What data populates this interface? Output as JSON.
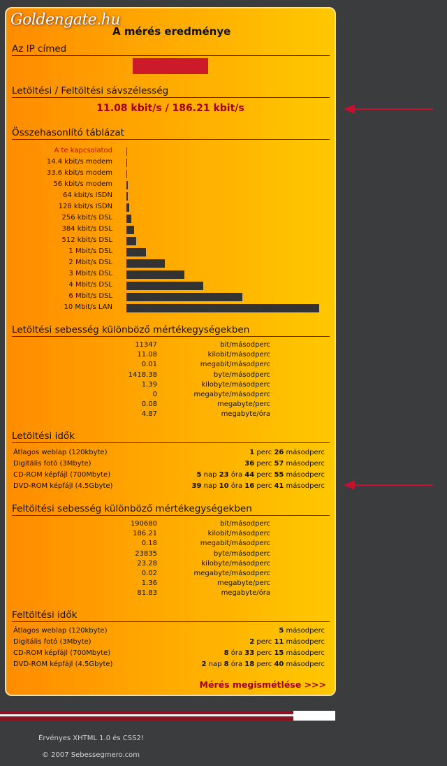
{
  "header": {
    "logo_text": "Goldengate.hu",
    "title": "A mérés eredménye"
  },
  "ip_section": {
    "heading": "Az IP címed"
  },
  "bandwidth": {
    "heading": "Letöltési / Feltöltési sávszélesség",
    "value": "11.08 kbit/s / 186.21 kbit/s"
  },
  "comparison": {
    "heading": "Összehasonlító táblázat",
    "rows": [
      {
        "label": "A te kapcsolatod",
        "value": 0.01108
      },
      {
        "label": "14.4 kbit/s modem",
        "value": 0.0144
      },
      {
        "label": "33.6 kbit/s modem",
        "value": 0.0336
      },
      {
        "label": "56 kbit/s modem",
        "value": 0.056
      },
      {
        "label": "64 kbit/s ISDN",
        "value": 0.064
      },
      {
        "label": "128 kbit/s ISDN",
        "value": 0.128
      },
      {
        "label": "256 kbit/s DSL",
        "value": 0.256
      },
      {
        "label": "384 kbit/s DSL",
        "value": 0.384
      },
      {
        "label": "512 kbit/s DSL",
        "value": 0.512
      },
      {
        "label": "1 Mbit/s DSL",
        "value": 1
      },
      {
        "label": "2 Mbit/s DSL",
        "value": 2
      },
      {
        "label": "3 Mbit/s DSL",
        "value": 3
      },
      {
        "label": "4 Mbit/s DSL",
        "value": 4
      },
      {
        "label": "6 Mbit/s DSL",
        "value": 6
      },
      {
        "label": "10 Mbit/s LAN",
        "value": 10
      }
    ],
    "max": 10,
    "highlight_color": "#c2001a",
    "bar_color": "#333333"
  },
  "download_units": {
    "heading": "Letöltési sebesség különböző mértékegységekben",
    "rows": [
      {
        "value": "11347",
        "unit": "bit/másodperc"
      },
      {
        "value": "11.08",
        "unit": "kilobit/másodperc"
      },
      {
        "value": "0.01",
        "unit": "megabit/másodperc"
      },
      {
        "value": "1418.38",
        "unit": "byte/másodperc"
      },
      {
        "value": "1.39",
        "unit": "kilobyte/másodperc"
      },
      {
        "value": "0",
        "unit": "megabyte/másodperc"
      },
      {
        "value": "0.08",
        "unit": "megabyte/perc"
      },
      {
        "value": "4.87",
        "unit": "megabyte/óra"
      }
    ]
  },
  "download_times": {
    "heading": "Letöltési idők",
    "rows": [
      {
        "label": "Átlagos weblap (120kbyte)",
        "parts": [
          [
            "1",
            " perc "
          ],
          [
            "26",
            " másodperc"
          ]
        ]
      },
      {
        "label": "Digitális fotó (3Mbyte)",
        "parts": [
          [
            "36",
            " perc "
          ],
          [
            "57",
            " másodperc"
          ]
        ]
      },
      {
        "label": "CD-ROM képfájl (700Mbyte)",
        "parts": [
          [
            "5",
            " nap "
          ],
          [
            "23",
            " óra "
          ],
          [
            "44",
            " perc "
          ],
          [
            "55",
            " másodperc"
          ]
        ]
      },
      {
        "label": "DVD-ROM képfájl (4.5Gbyte)",
        "parts": [
          [
            "39",
            " nap "
          ],
          [
            "10",
            " óra "
          ],
          [
            "16",
            " perc "
          ],
          [
            "41",
            " másodperc"
          ]
        ]
      }
    ]
  },
  "upload_units": {
    "heading": "Feltöltési sebesség különböző mértékegységekben",
    "rows": [
      {
        "value": "190680",
        "unit": "bit/másodperc"
      },
      {
        "value": "186.21",
        "unit": "kilobit/másodperc"
      },
      {
        "value": "0.18",
        "unit": "megabit/másodperc"
      },
      {
        "value": "23835",
        "unit": "byte/másodperc"
      },
      {
        "value": "23.28",
        "unit": "kilobyte/másodperc"
      },
      {
        "value": "0.02",
        "unit": "megabyte/másodperc"
      },
      {
        "value": "1.36",
        "unit": "megabyte/perc"
      },
      {
        "value": "81.83",
        "unit": "megabyte/óra"
      }
    ]
  },
  "upload_times": {
    "heading": "Feltöltési idők",
    "rows": [
      {
        "label": "Átlagos weblap (120kbyte)",
        "parts": [
          [
            "5",
            " másodperc"
          ]
        ]
      },
      {
        "label": "Digitális fotó (3Mbyte)",
        "parts": [
          [
            "2",
            " perc "
          ],
          [
            "11",
            " másodperc"
          ]
        ]
      },
      {
        "label": "CD-ROM képfájl (700Mbyte)",
        "parts": [
          [
            "8",
            " óra "
          ],
          [
            "33",
            " perc "
          ],
          [
            "15",
            " másodperc"
          ]
        ]
      },
      {
        "label": "DVD-ROM képfájl (4.5Gbyte)",
        "parts": [
          [
            "2",
            " nap "
          ],
          [
            "8",
            " óra "
          ],
          [
            "18",
            " perc "
          ],
          [
            "40",
            " másodperc"
          ]
        ]
      }
    ]
  },
  "actions": {
    "repeat_label": "Mérés megismétlése >>>"
  },
  "footer": {
    "valid": "Érvényes XHTML 1.0 és CSS2!",
    "copyright": "© 2007 Sebessegmero.com"
  }
}
